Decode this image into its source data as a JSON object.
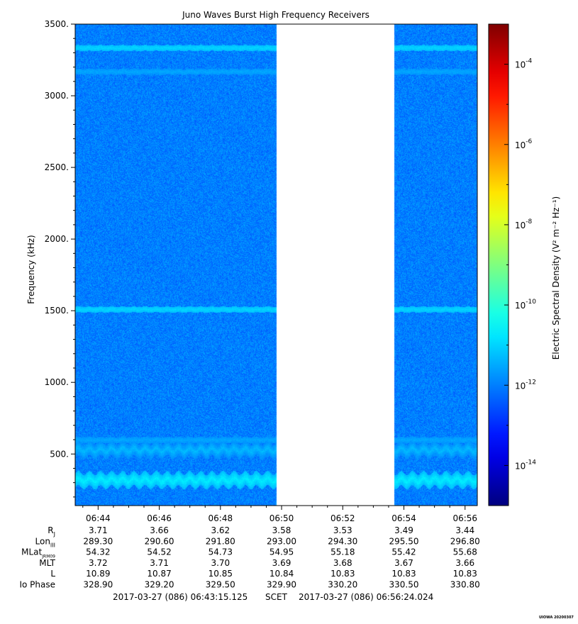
{
  "chart_data": {
    "type": "heatmap",
    "title": "Juno Waves Burst High Frequency Receivers",
    "ylabel": "Frequency (kHz)",
    "ylim": [
      140,
      3500
    ],
    "y_ticks": [
      500,
      1000,
      1500,
      2000,
      2500,
      3000,
      3500
    ],
    "y_tick_labels": [
      "500.",
      "1000.",
      "1500.",
      "2000.",
      "2500.",
      "3000.",
      "3500."
    ],
    "x_ticks": [
      "06:44",
      "06:46",
      "06:48",
      "06:50",
      "06:52",
      "06:54",
      "06:56"
    ],
    "x_range_minutes": [
      "06:43:15",
      "06:56:24"
    ],
    "data_gap": [
      "06:49:49",
      "06:53:41"
    ],
    "background_level": "1e-12",
    "bands": [
      {
        "freq_khz": 3335,
        "level": "1e-11"
      },
      {
        "freq_khz": 3170,
        "level": "3e-12"
      },
      {
        "freq_khz": 1510,
        "level": "1e-11"
      },
      {
        "freq_khz": 600,
        "level": "3e-12"
      },
      {
        "freq_khz": 530,
        "level": "5e-12"
      },
      {
        "freq_khz": 320,
        "level": "2e-11"
      }
    ],
    "colorbar": {
      "label": "Electric Spectral Density (V² m⁻² Hz⁻¹)",
      "scale": "log",
      "range": [
        "1e-15",
        "1e-3"
      ],
      "ticks": [
        {
          "exp": "-4",
          "value": -4
        },
        {
          "exp": "-6",
          "value": -6
        },
        {
          "exp": "-8",
          "value": -8
        },
        {
          "exp": "-10",
          "value": -10
        },
        {
          "exp": "-12",
          "value": -12
        },
        {
          "exp": "-14",
          "value": -14
        }
      ]
    }
  },
  "ephemeris": {
    "rows": [
      {
        "label": "R",
        "sub": "J",
        "values": [
          "3.71",
          "3.66",
          "3.62",
          "3.58",
          "3.53",
          "3.49",
          "3.44"
        ]
      },
      {
        "label": "Lon",
        "sub": "III",
        "values": [
          "289.30",
          "290.60",
          "291.80",
          "293.00",
          "294.30",
          "295.50",
          "296.80"
        ]
      },
      {
        "label": "MLat",
        "sub": "JRM09",
        "values": [
          "54.32",
          "54.52",
          "54.73",
          "54.95",
          "55.18",
          "55.42",
          "55.68"
        ]
      },
      {
        "label": "MLT",
        "sub": "",
        "values": [
          "3.72",
          "3.71",
          "3.70",
          "3.69",
          "3.68",
          "3.67",
          "3.66"
        ]
      },
      {
        "label": "L",
        "sub": "",
        "values": [
          "10.89",
          "10.87",
          "10.85",
          "10.84",
          "10.83",
          "10.83",
          "10.83"
        ]
      },
      {
        "label": "Io Phase",
        "sub": "",
        "values": [
          "328.90",
          "329.20",
          "329.50",
          "329.90",
          "330.20",
          "330.50",
          "330.80"
        ]
      }
    ]
  },
  "time_range": {
    "start": "2017-03-27 (086) 06:43:15.125",
    "mid": "SCET",
    "end": "2017-03-27 (086) 06:56:24.024"
  },
  "footer_tag": "UIOWA 20200307"
}
